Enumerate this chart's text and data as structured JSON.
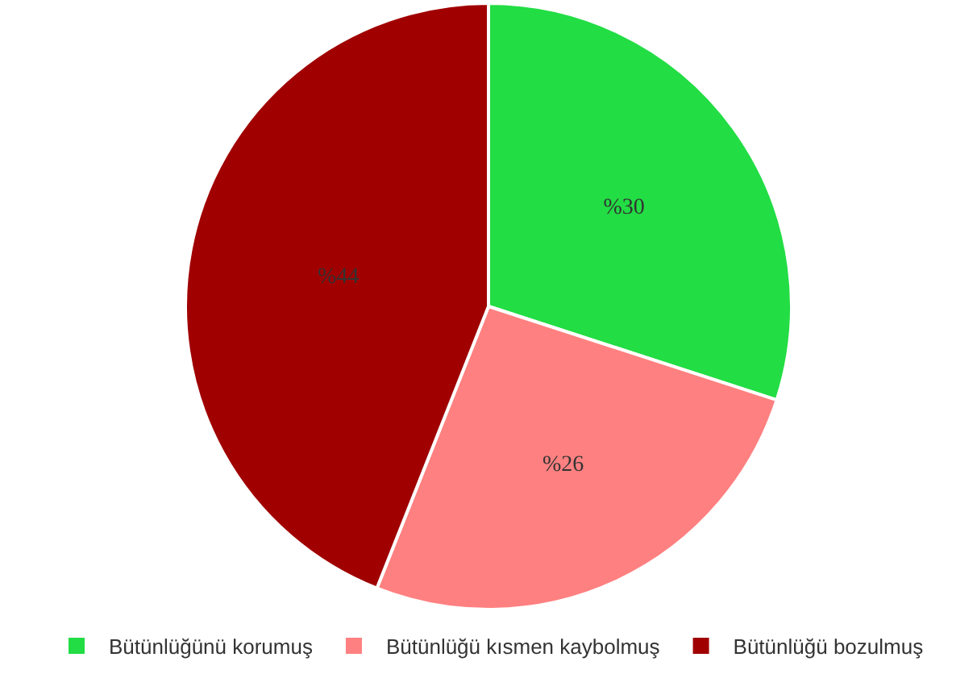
{
  "chart_data": {
    "type": "pie",
    "categories": [
      "Bütünlüğünü korumuş",
      "Bütünlüğü kısmen kaybolmuş",
      "Bütünlüğü bozulmuş"
    ],
    "values": [
      30,
      26,
      44
    ],
    "value_labels": [
      "%30",
      "%26",
      "%44"
    ],
    "colors": [
      "#22dd44",
      "#ff8080",
      "#a00000"
    ],
    "legend": "bottom"
  }
}
